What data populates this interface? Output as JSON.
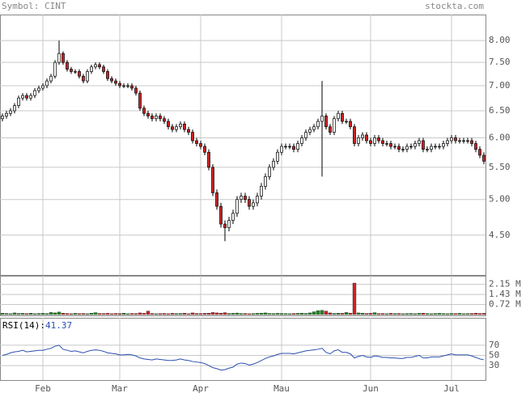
{
  "header": {
    "symbol": "Symbol: CINT",
    "site": "stockta.com"
  },
  "chart_data": [
    {
      "type": "candlestick",
      "log_scale": true,
      "grid": true,
      "colors": {
        "up": "#ffffff",
        "down": "#cc2222",
        "wick": "#000000"
      },
      "ylim": [
        4.0,
        8.64
      ],
      "yticks": [
        {
          "value": 4.5,
          "label": "4.50"
        },
        {
          "value": 5,
          "label": "5.00"
        },
        {
          "value": 5.5,
          "label": "5.50"
        },
        {
          "value": 6,
          "label": "6.00"
        },
        {
          "value": 6.5,
          "label": "6.50"
        },
        {
          "value": 7,
          "label": "7.00"
        },
        {
          "value": 7.5,
          "label": "7.50"
        },
        {
          "value": 8,
          "label": "8.00"
        }
      ],
      "categories": [
        null,
        null,
        null,
        null,
        null,
        null,
        null,
        null,
        null,
        null,
        "Feb",
        null,
        null,
        null,
        null,
        null,
        null,
        null,
        null,
        null,
        null,
        null,
        null,
        null,
        null,
        null,
        null,
        null,
        null,
        "Mar",
        null,
        null,
        null,
        null,
        null,
        null,
        null,
        null,
        null,
        null,
        null,
        null,
        null,
        null,
        null,
        null,
        null,
        null,
        null,
        "Apr",
        null,
        null,
        null,
        null,
        null,
        null,
        null,
        null,
        null,
        null,
        null,
        null,
        null,
        null,
        null,
        null,
        null,
        null,
        null,
        "Mau",
        null,
        null,
        null,
        null,
        null,
        null,
        null,
        null,
        null,
        null,
        null,
        null,
        null,
        null,
        null,
        null,
        null,
        null,
        null,
        null,
        null,
        "Jun",
        null,
        null,
        null,
        null,
        null,
        null,
        null,
        null,
        null,
        null,
        null,
        null,
        null,
        null,
        null,
        null,
        null,
        null,
        null,
        "Jul",
        null,
        null,
        null,
        null,
        null,
        null,
        null,
        null
      ],
      "open": [
        6.35,
        6.4,
        6.45,
        6.5,
        6.6,
        6.75,
        6.8,
        6.75,
        6.8,
        6.9,
        6.95,
        7.0,
        7.1,
        7.2,
        7.5,
        7.7,
        7.5,
        7.35,
        7.3,
        7.3,
        7.2,
        7.1,
        7.3,
        7.4,
        7.45,
        7.4,
        7.3,
        7.15,
        7.1,
        7.05,
        7.0,
        7.0,
        7.0,
        6.95,
        6.85,
        6.55,
        6.45,
        6.4,
        6.35,
        6.4,
        6.35,
        6.3,
        6.2,
        6.15,
        6.2,
        6.25,
        6.15,
        6.1,
        5.95,
        5.9,
        5.85,
        5.75,
        5.5,
        5.1,
        4.9,
        4.65,
        4.6,
        4.7,
        4.8,
        5.0,
        5.05,
        5.0,
        4.9,
        4.95,
        5.05,
        5.2,
        5.35,
        5.5,
        5.6,
        5.75,
        5.85,
        5.85,
        5.85,
        5.8,
        5.9,
        6.0,
        6.1,
        6.15,
        6.2,
        6.3,
        6.4,
        6.2,
        6.1,
        6.35,
        6.45,
        6.3,
        6.3,
        6.2,
        5.9,
        6.0,
        6.05,
        5.95,
        5.9,
        6.0,
        5.95,
        5.9,
        5.9,
        5.85,
        5.85,
        5.8,
        5.8,
        5.85,
        5.85,
        5.9,
        5.95,
        5.8,
        5.8,
        5.85,
        5.85,
        5.85,
        5.9,
        5.95,
        6.0,
        5.95,
        5.95,
        5.95,
        5.95,
        5.9,
        5.8,
        5.7
      ],
      "high": [
        6.45,
        6.5,
        6.55,
        6.65,
        6.8,
        6.85,
        6.85,
        6.85,
        6.95,
        7.0,
        7.05,
        7.15,
        7.25,
        7.55,
        8.0,
        7.75,
        7.55,
        7.4,
        7.35,
        7.35,
        7.25,
        7.35,
        7.45,
        7.5,
        7.5,
        7.45,
        7.35,
        7.2,
        7.15,
        7.1,
        7.05,
        7.05,
        7.05,
        7.0,
        6.9,
        6.6,
        6.5,
        6.45,
        6.45,
        6.45,
        6.4,
        6.35,
        6.25,
        6.25,
        6.3,
        6.3,
        6.2,
        6.15,
        6.0,
        5.95,
        5.9,
        5.8,
        5.55,
        5.15,
        4.95,
        4.7,
        4.75,
        4.85,
        5.05,
        5.1,
        5.1,
        5.05,
        5.0,
        5.1,
        5.25,
        5.4,
        5.55,
        5.65,
        5.8,
        5.9,
        5.9,
        5.9,
        5.9,
        5.95,
        6.05,
        6.15,
        6.2,
        6.25,
        6.35,
        7.1,
        6.45,
        6.25,
        6.4,
        6.5,
        6.5,
        6.35,
        6.35,
        6.25,
        6.05,
        6.1,
        6.1,
        6.0,
        6.05,
        6.05,
        6.0,
        5.95,
        5.95,
        5.9,
        5.9,
        5.85,
        5.9,
        5.9,
        5.95,
        6.0,
        6.0,
        5.85,
        5.9,
        5.9,
        5.9,
        5.95,
        6.0,
        6.05,
        6.05,
        6.0,
        6.0,
        6.0,
        6.0,
        5.95,
        5.85,
        5.75
      ],
      "low": [
        6.3,
        6.35,
        6.4,
        6.45,
        6.55,
        6.7,
        6.7,
        6.7,
        6.75,
        6.85,
        6.9,
        6.95,
        7.05,
        7.15,
        7.45,
        7.45,
        7.3,
        7.25,
        7.25,
        7.15,
        7.05,
        7.05,
        7.25,
        7.35,
        7.35,
        7.25,
        7.1,
        7.05,
        7.0,
        6.95,
        6.95,
        6.95,
        6.9,
        6.8,
        6.5,
        6.4,
        6.35,
        6.3,
        6.3,
        6.3,
        6.25,
        6.15,
        6.1,
        6.1,
        6.15,
        6.1,
        6.05,
        5.9,
        5.85,
        5.8,
        5.7,
        5.45,
        5.05,
        4.85,
        4.6,
        4.42,
        4.55,
        4.65,
        4.75,
        4.95,
        4.95,
        4.85,
        4.85,
        4.9,
        5.0,
        5.15,
        5.3,
        5.45,
        5.55,
        5.7,
        5.8,
        5.8,
        5.75,
        5.75,
        5.85,
        5.95,
        6.05,
        6.1,
        6.15,
        5.35,
        6.15,
        6.05,
        6.05,
        6.3,
        6.25,
        6.25,
        6.15,
        5.85,
        5.85,
        5.95,
        5.9,
        5.85,
        5.85,
        5.9,
        5.85,
        5.85,
        5.8,
        5.8,
        5.75,
        5.75,
        5.75,
        5.8,
        5.8,
        5.85,
        5.75,
        5.75,
        5.75,
        5.8,
        5.8,
        5.8,
        5.85,
        5.9,
        5.9,
        5.9,
        5.9,
        5.9,
        5.85,
        5.75,
        5.65,
        5.55
      ],
      "close": [
        6.4,
        6.45,
        6.5,
        6.6,
        6.75,
        6.8,
        6.75,
        6.8,
        6.9,
        6.95,
        7.0,
        7.1,
        7.2,
        7.5,
        7.7,
        7.5,
        7.35,
        7.3,
        7.3,
        7.2,
        7.1,
        7.3,
        7.4,
        7.45,
        7.4,
        7.3,
        7.15,
        7.1,
        7.05,
        7.0,
        7.0,
        7.0,
        6.95,
        6.85,
        6.55,
        6.45,
        6.4,
        6.35,
        6.4,
        6.35,
        6.3,
        6.2,
        6.15,
        6.2,
        6.25,
        6.15,
        6.1,
        5.95,
        5.9,
        5.85,
        5.75,
        5.5,
        5.1,
        4.9,
        4.65,
        4.6,
        4.7,
        4.8,
        5.0,
        5.05,
        5.0,
        4.9,
        4.95,
        5.05,
        5.2,
        5.35,
        5.5,
        5.6,
        5.75,
        5.85,
        5.85,
        5.85,
        5.8,
        5.9,
        6.0,
        6.1,
        6.15,
        6.2,
        6.3,
        6.4,
        6.2,
        6.1,
        6.35,
        6.45,
        6.3,
        6.3,
        6.2,
        5.9,
        6.0,
        6.05,
        5.95,
        5.9,
        6.0,
        5.95,
        5.9,
        5.9,
        5.85,
        5.85,
        5.8,
        5.8,
        5.85,
        5.85,
        5.9,
        5.95,
        5.8,
        5.8,
        5.85,
        5.85,
        5.85,
        5.9,
        5.95,
        6.0,
        5.95,
        5.95,
        5.95,
        5.95,
        5.9,
        5.8,
        5.7,
        5.6
      ]
    },
    {
      "type": "bar",
      "grid": true,
      "colors": {
        "up": "#228822",
        "down": "#cc2222"
      },
      "ylim": [
        0,
        2.76
      ],
      "yticks": [
        {
          "value": 0.72,
          "label": "0.72 M"
        },
        {
          "value": 1.43,
          "label": "1.43 M"
        },
        {
          "value": 2.15,
          "label": "2.15 M"
        }
      ],
      "values": [
        0.1,
        0.08,
        0.06,
        0.12,
        0.08,
        0.09,
        0.07,
        0.1,
        0.06,
        0.08,
        0.09,
        0.07,
        0.15,
        0.12,
        0.18,
        0.1,
        0.08,
        0.06,
        0.09,
        0.07,
        0.08,
        0.06,
        0.1,
        0.14,
        0.08,
        0.07,
        0.09,
        0.06,
        0.08,
        0.07,
        0.1,
        0.06,
        0.08,
        0.07,
        0.12,
        0.09,
        0.25,
        0.08,
        0.06,
        0.07,
        0.08,
        0.06,
        0.09,
        0.07,
        0.08,
        0.1,
        0.06,
        0.12,
        0.08,
        0.07,
        0.09,
        0.1,
        0.15,
        0.12,
        0.1,
        0.14,
        0.08,
        0.09,
        0.11,
        0.07,
        0.08,
        0.06,
        0.07,
        0.09,
        0.1,
        0.12,
        0.08,
        0.07,
        0.09,
        0.08,
        0.07,
        0.06,
        0.08,
        0.09,
        0.1,
        0.08,
        0.12,
        0.2,
        0.28,
        0.3,
        0.25,
        0.12,
        0.08,
        0.1,
        0.09,
        0.15,
        0.1,
        2.24,
        0.12,
        0.1,
        0.08,
        0.09,
        0.14,
        0.07,
        0.08,
        0.06,
        0.09,
        0.07,
        0.08,
        0.06,
        0.07,
        0.08,
        0.06,
        0.09,
        0.1,
        0.07,
        0.06,
        0.08,
        0.09,
        0.07,
        0.06,
        0.08,
        0.07,
        0.09,
        0.06,
        0.07,
        0.08,
        0.1,
        0.08,
        0.09
      ]
    },
    {
      "type": "line",
      "label": "RSI(14):",
      "color": "#2a4fb0",
      "grid": true,
      "ylim": [
        0,
        100
      ],
      "yticks": [
        30,
        50,
        70
      ],
      "values": [
        50,
        52,
        55,
        57,
        58,
        60,
        57,
        58,
        59,
        60,
        60,
        62,
        64,
        68,
        70,
        62,
        60,
        58,
        59,
        57,
        55,
        58,
        60,
        61,
        60,
        58,
        55,
        54,
        53,
        51,
        51,
        52,
        51,
        49,
        45,
        43,
        42,
        41,
        43,
        42,
        41,
        40,
        40,
        41,
        43,
        41,
        40,
        38,
        37,
        36,
        34,
        30,
        26,
        24,
        21,
        22,
        25,
        27,
        33,
        35,
        34,
        31,
        33,
        36,
        40,
        44,
        47,
        49,
        52,
        54,
        54,
        54,
        53,
        55,
        57,
        59,
        60,
        61,
        62,
        64,
        56,
        53,
        59,
        61,
        56,
        56,
        53,
        45,
        48,
        50,
        47,
        46,
        49,
        48,
        46,
        46,
        45,
        45,
        44,
        44,
        46,
        46,
        48,
        50,
        45,
        45,
        47,
        47,
        47,
        49,
        51,
        53,
        51,
        51,
        51,
        51,
        49,
        46,
        43,
        41.37
      ]
    }
  ]
}
